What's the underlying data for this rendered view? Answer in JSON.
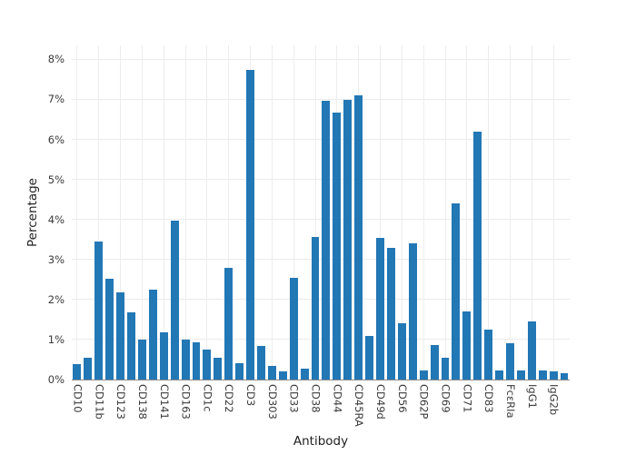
{
  "chart_data": {
    "type": "bar",
    "xlabel": "Antibody",
    "ylabel": "Percentage",
    "grid": true,
    "legend_position": "none",
    "bar_color": "#2277b5",
    "grid_color": "#ebebeb",
    "axis_line_color": "#8a8a8a",
    "tick_text_color": "#3a3a3a",
    "ylim": [
      0,
      8.35
    ],
    "y_ticks": [
      {
        "value": 0,
        "label": "0%"
      },
      {
        "value": 1,
        "label": "1%"
      },
      {
        "value": 2,
        "label": "2%"
      },
      {
        "value": 3,
        "label": "3%"
      },
      {
        "value": 4,
        "label": "4%"
      },
      {
        "value": 5,
        "label": "5%"
      },
      {
        "value": 6,
        "label": "6%"
      },
      {
        "value": 7,
        "label": "7%"
      },
      {
        "value": 8,
        "label": "8%"
      }
    ],
    "tick_every_n_bars": 2,
    "x_tick_labels": [
      "CD10",
      "CD11b",
      "CD123",
      "CD138",
      "CD141",
      "CD163",
      "CD1c",
      "CD22",
      "CD3",
      "CD303",
      "CD33",
      "CD38",
      "CD44",
      "CD45RA",
      "CD49d",
      "CD56",
      "CD62P",
      "CD69",
      "CD71",
      "CD83",
      "FcεRIa",
      "IgG1",
      "IgG2b"
    ],
    "values": [
      0.38,
      0.55,
      3.45,
      2.52,
      2.18,
      1.68,
      1.0,
      2.25,
      1.18,
      3.97,
      1.0,
      0.93,
      0.75,
      0.55,
      2.78,
      0.4,
      7.73,
      0.85,
      0.33,
      0.2,
      2.55,
      0.28,
      3.57,
      6.97,
      6.67,
      7.0,
      7.1,
      1.1,
      3.55,
      3.3,
      1.4,
      3.4,
      0.22,
      0.87,
      0.55,
      4.4,
      1.7,
      6.2,
      1.25,
      0.22,
      0.9,
      0.22,
      1.45,
      0.22,
      0.2,
      0.15
    ]
  }
}
